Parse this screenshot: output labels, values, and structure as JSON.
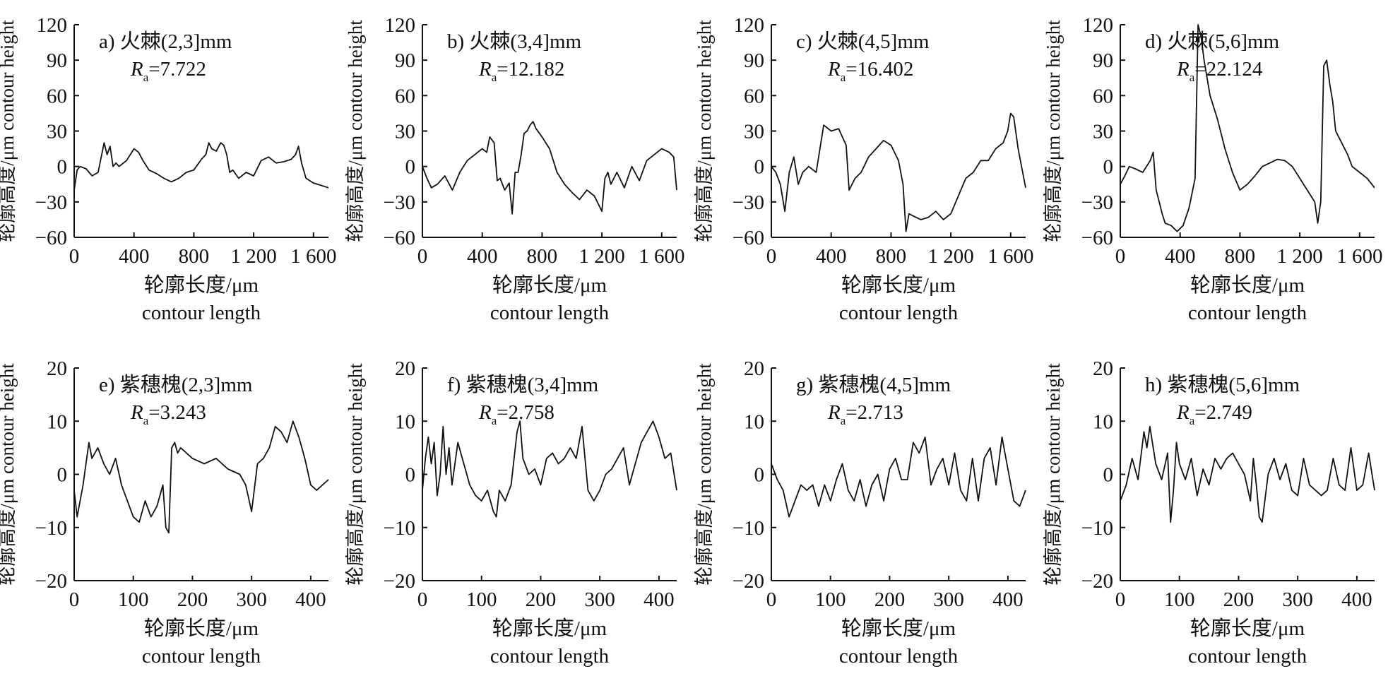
{
  "figure": {
    "panels": [
      {
        "id": "a",
        "title": "a) 火棘(2,3]mm",
        "ra_label": "R",
        "ra_sub": "a",
        "ra_value": "=7.722",
        "xticks": [
          "0",
          "400",
          "800",
          "1 200",
          "1 600"
        ],
        "yticks": [
          "120",
          "90",
          "60",
          "30",
          "0",
          "−30",
          "−60"
        ],
        "xlabel_cn": "轮廓长度/μm",
        "xlabel_en": "contour length",
        "ylabel_cn": "轮廓高度/μm",
        "ylabel_en": "contour height"
      },
      {
        "id": "b",
        "title": "b) 火棘(3,4]mm",
        "ra_label": "R",
        "ra_sub": "a",
        "ra_value": "=12.182",
        "xticks": [
          "0",
          "400",
          "800",
          "1 200",
          "1 600"
        ],
        "yticks": [
          "120",
          "90",
          "60",
          "30",
          "0",
          "−30",
          "−60"
        ],
        "xlabel_cn": "轮廓长度/μm",
        "xlabel_en": "contour length",
        "ylabel_cn": "轮廓高度/μm",
        "ylabel_en": "contour height"
      },
      {
        "id": "c",
        "title": "c) 火棘(4,5]mm",
        "ra_label": "R",
        "ra_sub": "a",
        "ra_value": "=16.402",
        "xticks": [
          "0",
          "400",
          "800",
          "1 200",
          "1 600"
        ],
        "yticks": [
          "120",
          "90",
          "60",
          "30",
          "0",
          "−30",
          "−60"
        ],
        "xlabel_cn": "轮廓长度/μm",
        "xlabel_en": "contour length",
        "ylabel_cn": "轮廓高度/μm",
        "ylabel_en": "contour height"
      },
      {
        "id": "d",
        "title": "d) 火棘(5,6]mm",
        "ra_label": "R",
        "ra_sub": "a",
        "ra_value": "=22.124",
        "xticks": [
          "0",
          "400",
          "800",
          "1 200",
          "1 600"
        ],
        "yticks": [
          "120",
          "90",
          "60",
          "30",
          "0",
          "−30",
          "−60"
        ],
        "xlabel_cn": "轮廓长度/μm",
        "xlabel_en": "contour length",
        "ylabel_cn": "轮廓高度/μm",
        "ylabel_en": "contour height"
      },
      {
        "id": "e",
        "title": "e) 紫穗槐(2,3]mm",
        "ra_label": "R",
        "ra_sub": "a",
        "ra_value": "=3.243",
        "xticks": [
          "0",
          "100",
          "200",
          "300",
          "400"
        ],
        "yticks": [
          "20",
          "10",
          "0",
          "−10",
          "−20"
        ],
        "xlabel_cn": "轮廓长度/μm",
        "xlabel_en": "contour length",
        "ylabel_cn": "轮廓高度/μm",
        "ylabel_en": "contour height"
      },
      {
        "id": "f",
        "title": "f) 紫穗槐(3,4]mm",
        "ra_label": "R",
        "ra_sub": "a",
        "ra_value": "=2.758",
        "xticks": [
          "0",
          "100",
          "200",
          "300",
          "400"
        ],
        "yticks": [
          "20",
          "10",
          "0",
          "−10",
          "−20"
        ],
        "xlabel_cn": "轮廓长度/μm",
        "xlabel_en": "contour length",
        "ylabel_cn": "轮廓高度/μm",
        "ylabel_en": "contour height"
      },
      {
        "id": "g",
        "title": "g) 紫穗槐(4,5]mm",
        "ra_label": "R",
        "ra_sub": "a",
        "ra_value": "=2.713",
        "xticks": [
          "0",
          "100",
          "200",
          "300",
          "400"
        ],
        "yticks": [
          "20",
          "10",
          "0",
          "−10",
          "−20"
        ],
        "xlabel_cn": "轮廓长度/μm",
        "xlabel_en": "contour length",
        "ylabel_cn": "轮廓高度/μm",
        "ylabel_en": "contour height"
      },
      {
        "id": "h",
        "title": "h) 紫穗槐(5,6]mm",
        "ra_label": "R",
        "ra_sub": "a",
        "ra_value": "=2.749",
        "xticks": [
          "0",
          "100",
          "200",
          "300",
          "400"
        ],
        "yticks": [
          "20",
          "10",
          "0",
          "−10",
          "−20"
        ],
        "xlabel_cn": "轮廓长度/μm",
        "xlabel_en": "contour length",
        "ylabel_cn": "轮廓高度/μm",
        "ylabel_en": "contour height"
      }
    ]
  },
  "chart_data": [
    {
      "type": "line",
      "panel": "a",
      "title": "a) 火棘(2,3]mm",
      "xlabel": "轮廓长度/μm contour length",
      "ylabel": "轮廓高度/μm contour height",
      "xlim": [
        0,
        1700
      ],
      "ylim": [
        -60,
        120
      ],
      "grid": false,
      "series": [
        {
          "x": [
            0,
            20,
            40,
            80,
            120,
            160,
            200,
            220,
            240,
            260,
            280,
            300,
            350,
            400,
            430,
            460,
            500,
            550,
            600,
            650,
            700,
            750,
            800,
            850,
            880,
            900,
            920,
            950,
            980,
            1000,
            1020,
            1040,
            1060,
            1100,
            1150,
            1200,
            1250,
            1300,
            1350,
            1400,
            1450,
            1480,
            1500,
            1520,
            1550,
            1600,
            1650,
            1700
          ],
          "values": [
            -20,
            -3,
            0,
            -2,
            -8,
            -5,
            20,
            10,
            17,
            0,
            3,
            0,
            5,
            15,
            12,
            5,
            -3,
            -6,
            -10,
            -13,
            -10,
            -5,
            -3,
            6,
            10,
            20,
            15,
            13,
            20,
            18,
            10,
            -5,
            -3,
            -10,
            -5,
            -8,
            5,
            8,
            3,
            4,
            6,
            10,
            17,
            3,
            -10,
            -14,
            -16,
            -18
          ]
        }
      ]
    },
    {
      "type": "line",
      "panel": "b",
      "title": "b) 火棘(3,4]mm",
      "xlabel": "轮廓长度/μm contour length",
      "ylabel": "轮廓高度/μm contour height",
      "xlim": [
        0,
        1700
      ],
      "ylim": [
        -60,
        120
      ],
      "grid": false,
      "series": [
        {
          "x": [
            0,
            30,
            60,
            100,
            150,
            200,
            250,
            300,
            350,
            400,
            430,
            450,
            480,
            500,
            520,
            550,
            580,
            600,
            620,
            640,
            660,
            680,
            700,
            720,
            740,
            760,
            800,
            850,
            900,
            950,
            1000,
            1050,
            1100,
            1150,
            1200,
            1220,
            1240,
            1260,
            1300,
            1350,
            1400,
            1450,
            1500,
            1550,
            1600,
            1650,
            1680,
            1700
          ],
          "values": [
            0,
            -10,
            -18,
            -15,
            -8,
            -20,
            -5,
            5,
            10,
            15,
            12,
            25,
            20,
            -12,
            -10,
            -20,
            -14,
            -40,
            -5,
            -5,
            10,
            28,
            30,
            35,
            38,
            32,
            25,
            15,
            -5,
            -15,
            -22,
            -28,
            -20,
            -25,
            -38,
            -10,
            -5,
            -15,
            -5,
            -18,
            0,
            -12,
            5,
            10,
            15,
            12,
            8,
            -20
          ]
        }
      ]
    },
    {
      "type": "line",
      "panel": "c",
      "title": "c) 火棘(4,5]mm",
      "xlabel": "轮廓长度/μm contour length",
      "ylabel": "轮廓高度/μm contour height",
      "xlim": [
        0,
        1700
      ],
      "ylim": [
        -60,
        120
      ],
      "grid": false,
      "series": [
        {
          "x": [
            0,
            30,
            60,
            90,
            120,
            150,
            180,
            210,
            250,
            300,
            350,
            400,
            450,
            500,
            520,
            560,
            600,
            650,
            700,
            750,
            800,
            850,
            880,
            900,
            920,
            950,
            1000,
            1050,
            1100,
            1150,
            1200,
            1250,
            1300,
            1350,
            1400,
            1450,
            1500,
            1550,
            1580,
            1600,
            1620,
            1650,
            1680,
            1700
          ],
          "values": [
            0,
            -5,
            -15,
            -38,
            -5,
            8,
            -15,
            -5,
            0,
            -5,
            35,
            30,
            32,
            18,
            -20,
            -10,
            -5,
            8,
            15,
            22,
            18,
            5,
            -15,
            -55,
            -40,
            -42,
            -45,
            -43,
            -38,
            -45,
            -40,
            -25,
            -10,
            -5,
            5,
            5,
            15,
            20,
            30,
            45,
            42,
            15,
            -5,
            -18
          ]
        }
      ]
    },
    {
      "type": "line",
      "panel": "d",
      "title": "d) 火棘(5,6]mm",
      "xlabel": "轮廓长度/μm contour length",
      "ylabel": "轮廓高度/μm contour height",
      "xlim": [
        0,
        1700
      ],
      "ylim": [
        -60,
        120
      ],
      "grid": false,
      "series": [
        {
          "x": [
            0,
            30,
            60,
            100,
            150,
            200,
            220,
            240,
            260,
            280,
            300,
            340,
            380,
            420,
            460,
            500,
            520,
            540,
            560,
            600,
            650,
            700,
            750,
            800,
            850,
            900,
            950,
            1000,
            1050,
            1100,
            1150,
            1200,
            1250,
            1300,
            1320,
            1340,
            1360,
            1380,
            1400,
            1420,
            1440,
            1480,
            1520,
            1550,
            1600,
            1650,
            1700
          ],
          "values": [
            -15,
            -8,
            0,
            -2,
            -5,
            5,
            12,
            -20,
            -30,
            -40,
            -48,
            -50,
            -55,
            -50,
            -35,
            -10,
            120,
            110,
            90,
            60,
            40,
            15,
            -5,
            -20,
            -15,
            -8,
            0,
            3,
            6,
            5,
            0,
            -10,
            -20,
            -30,
            -48,
            -30,
            85,
            90,
            70,
            55,
            30,
            20,
            10,
            0,
            -5,
            -10,
            -18
          ]
        }
      ]
    },
    {
      "type": "line",
      "panel": "e",
      "title": "e) 紫穗槐(2,3]mm",
      "xlabel": "轮廓长度/μm contour length",
      "ylabel": "轮廓高度/μm contour height",
      "xlim": [
        0,
        430
      ],
      "ylim": [
        -20,
        20
      ],
      "grid": false,
      "series": [
        {
          "x": [
            0,
            5,
            10,
            15,
            20,
            25,
            30,
            40,
            50,
            60,
            70,
            80,
            90,
            100,
            110,
            115,
            120,
            130,
            140,
            150,
            155,
            160,
            165,
            170,
            175,
            180,
            200,
            220,
            240,
            260,
            280,
            290,
            300,
            310,
            320,
            330,
            340,
            350,
            360,
            370,
            380,
            390,
            400,
            410,
            420,
            430
          ],
          "values": [
            -3,
            -8,
            -5,
            -2,
            2,
            6,
            3,
            5,
            2,
            0,
            3,
            -2,
            -5,
            -8,
            -9,
            -7,
            -5,
            -8,
            -6,
            -2,
            -10,
            -11,
            5,
            6,
            4,
            5,
            3,
            2,
            3,
            1,
            0,
            -2,
            -7,
            2,
            3,
            5,
            9,
            8,
            6,
            10,
            7,
            3,
            -2,
            -3,
            -2,
            -1
          ]
        }
      ]
    },
    {
      "type": "line",
      "panel": "f",
      "title": "f) 紫穗槐(3,4]mm",
      "xlabel": "轮廓长度/μm contour length",
      "ylabel": "轮廓高度/μm contour height",
      "xlim": [
        0,
        430
      ],
      "ylim": [
        -20,
        20
      ],
      "grid": false,
      "series": [
        {
          "x": [
            0,
            5,
            10,
            15,
            20,
            25,
            30,
            35,
            40,
            45,
            50,
            60,
            70,
            80,
            90,
            100,
            110,
            120,
            125,
            130,
            140,
            150,
            160,
            165,
            170,
            180,
            190,
            200,
            210,
            220,
            230,
            240,
            250,
            260,
            270,
            280,
            290,
            300,
            310,
            320,
            330,
            340,
            350,
            360,
            370,
            380,
            390,
            400,
            410,
            420,
            430
          ],
          "values": [
            -3,
            3,
            7,
            2,
            6,
            -4,
            0,
            9,
            0,
            5,
            -2,
            6,
            2,
            -2,
            -4,
            -5,
            -3,
            -7,
            -8,
            -3,
            -5,
            -2,
            8,
            10,
            3,
            0,
            1,
            -2,
            3,
            4,
            2,
            3,
            5,
            3,
            9,
            -3,
            -5,
            -3,
            0,
            1,
            3,
            5,
            -2,
            2,
            6,
            8,
            10,
            7,
            3,
            4,
            -3
          ]
        }
      ]
    },
    {
      "type": "line",
      "panel": "g",
      "title": "g) 紫穗槐(4,5]mm",
      "xlabel": "轮廓长度/μm contour length",
      "ylabel": "轮廓高度/μm contour height",
      "xlim": [
        0,
        430
      ],
      "ylim": [
        -20,
        20
      ],
      "grid": false,
      "series": [
        {
          "x": [
            0,
            10,
            20,
            30,
            40,
            50,
            60,
            70,
            80,
            90,
            100,
            110,
            120,
            130,
            140,
            150,
            160,
            170,
            180,
            190,
            200,
            210,
            220,
            230,
            240,
            250,
            260,
            270,
            280,
            290,
            300,
            310,
            320,
            330,
            340,
            350,
            360,
            370,
            380,
            390,
            400,
            410,
            420,
            430
          ],
          "values": [
            2,
            -1,
            -3,
            -8,
            -5,
            -2,
            -3,
            -2,
            -6,
            -2,
            -5,
            -1,
            2,
            -3,
            -5,
            -1,
            -6,
            -2,
            0,
            -5,
            1,
            3,
            -1,
            -1,
            6,
            4,
            7,
            -2,
            1,
            3,
            -2,
            4,
            -3,
            -5,
            3,
            -5,
            3,
            5,
            -2,
            7,
            1,
            -5,
            -6,
            -3
          ]
        }
      ]
    },
    {
      "type": "line",
      "panel": "h",
      "title": "h) 紫穗槐(5,6]mm",
      "xlabel": "轮廓长度/μm contour length",
      "ylabel": "轮廓高度/μm contour height",
      "xlim": [
        0,
        430
      ],
      "ylim": [
        -20,
        20
      ],
      "grid": false,
      "series": [
        {
          "x": [
            0,
            10,
            20,
            30,
            40,
            45,
            50,
            60,
            70,
            80,
            85,
            90,
            95,
            100,
            110,
            120,
            130,
            140,
            150,
            160,
            170,
            180,
            190,
            200,
            210,
            220,
            225,
            230,
            235,
            240,
            250,
            260,
            270,
            280,
            290,
            300,
            310,
            320,
            330,
            340,
            350,
            360,
            370,
            380,
            390,
            400,
            410,
            420,
            430
          ],
          "values": [
            -5,
            -2,
            3,
            -1,
            8,
            5,
            9,
            2,
            -1,
            4,
            -9,
            -3,
            6,
            2,
            -1,
            3,
            -4,
            1,
            -2,
            3,
            1,
            3,
            4,
            2,
            0,
            -5,
            3,
            -2,
            -8,
            -9,
            0,
            3,
            -1,
            2,
            -3,
            -4,
            3,
            -2,
            -3,
            -4,
            -3,
            3,
            -2,
            -3,
            5,
            -3,
            -2,
            4,
            -3
          ]
        }
      ]
    }
  ]
}
